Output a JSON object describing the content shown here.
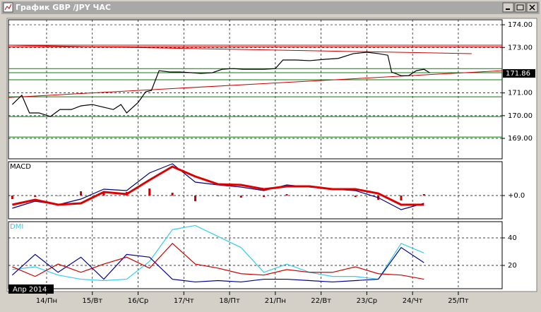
{
  "window": {
    "title": "График GBP /JPY ЧАС",
    "period_label": "Апр 2014"
  },
  "chart_data": [
    {
      "type": "line",
      "xlim": [
        -20,
        239
      ],
      "ylim": [
        168.1,
        174.22
      ],
      "yticks": [
        {
          "value": 169,
          "label": "169.00"
        },
        {
          "value": 170,
          "label": "170.00"
        },
        {
          "value": 171,
          "label": "171.00"
        },
        {
          "value": 173,
          "label": "173.00"
        },
        {
          "value": 174,
          "label": "174.00"
        }
      ],
      "last_price": {
        "value": 171.86,
        "label": "171.86"
      },
      "x": [
        -18,
        -13,
        -9,
        -4,
        2,
        7,
        13,
        18,
        24,
        30,
        35,
        39,
        42,
        48,
        52,
        55,
        59,
        65,
        70,
        76,
        81,
        87,
        92,
        98,
        103,
        109,
        114,
        120,
        124,
        131,
        138,
        146,
        153,
        161,
        168,
        174,
        179,
        181,
        186,
        190,
        194,
        198,
        201
      ],
      "series": [
        {
          "color": "#000000",
          "values": [
            170.49,
            170.9,
            170.12,
            170.12,
            169.96,
            170.27,
            170.27,
            170.43,
            170.49,
            170.37,
            170.27,
            170.49,
            170.12,
            170.58,
            171.05,
            171.11,
            171.98,
            171.92,
            171.92,
            171.89,
            171.86,
            171.89,
            172.04,
            172.07,
            172.04,
            172.04,
            172.04,
            172.07,
            172.45,
            172.45,
            172.42,
            172.48,
            172.52,
            172.73,
            172.79,
            172.73,
            172.66,
            171.92,
            171.76,
            171.76,
            171.98,
            172.04,
            171.89
          ]
        }
      ],
      "levels": [
        {
          "value": 172.07,
          "color": "#008000"
        },
        {
          "value": 171.89,
          "color": "#008000"
        },
        {
          "value": 171.58,
          "color": "#008000"
        },
        {
          "value": 170.83,
          "color": "#008000"
        },
        {
          "value": 169.96,
          "color": "#008000"
        },
        {
          "value": 169.06,
          "color": "#008000"
        },
        {
          "value": 173.1,
          "color": "#cc0000"
        },
        {
          "value": 173.03,
          "color": "#cc0000"
        }
      ],
      "trendlines": [
        {
          "x": [
            -20,
            239
          ],
          "y": [
            170.8,
            171.98
          ],
          "color": "#cc0000"
        },
        {
          "x": [
            -20,
            223
          ],
          "y": [
            173.1,
            172.73
          ],
          "color": "#cc0000"
        }
      ]
    },
    {
      "type": "macd",
      "title": "MACD",
      "xlim": [
        -20,
        239
      ],
      "ylim": [
        -0.33,
        0.48
      ],
      "yticks": [
        {
          "value": 0,
          "label": "+0.0"
        }
      ],
      "x": [
        -18,
        -6,
        6,
        18,
        30,
        42,
        54,
        66,
        78,
        90,
        102,
        114,
        126,
        138,
        150,
        162,
        174,
        186,
        198
      ],
      "series": [
        {
          "type": "bar",
          "color": "#cc0000",
          "values": [
            -0.05,
            -0.02,
            0,
            0.06,
            0.04,
            0.05,
            0.1,
            0.04,
            -0.08,
            -0.01,
            -0.03,
            -0.02,
            0.02,
            -0.01,
            0,
            -0.02,
            -0.06,
            -0.07,
            0.02
          ]
        },
        {
          "type": "line",
          "color": "#000080",
          "values": [
            -0.18,
            -0.08,
            -0.13,
            -0.05,
            0.09,
            0.07,
            0.32,
            0.45,
            0.19,
            0.15,
            0.12,
            0.07,
            0.15,
            0.12,
            0.09,
            0.07,
            -0.03,
            -0.2,
            -0.11
          ]
        },
        {
          "type": "line",
          "color": "#dd0000",
          "width": 3,
          "values": [
            -0.13,
            -0.06,
            -0.13,
            -0.11,
            0.05,
            0.02,
            0.22,
            0.41,
            0.27,
            0.16,
            0.15,
            0.09,
            0.13,
            0.13,
            0.09,
            0.09,
            0.03,
            -0.13,
            -0.13
          ]
        }
      ]
    },
    {
      "type": "line",
      "title": "DMI",
      "xlim": [
        -20,
        239
      ],
      "ylim": [
        3.1,
        51.8
      ],
      "yticks": [
        20,
        40
      ],
      "xticks": [
        {
          "value": 0,
          "label": "14/Пн"
        },
        {
          "value": 24,
          "label": "15/Вт"
        },
        {
          "value": 48,
          "label": "16/Ср"
        },
        {
          "value": 72,
          "label": "17/Чт"
        },
        {
          "value": 96,
          "label": "18/Пт"
        },
        {
          "value": 120,
          "label": "21/Пн"
        },
        {
          "value": 144,
          "label": "22/Вт"
        },
        {
          "value": 168,
          "label": "23/Ср"
        },
        {
          "value": 192,
          "label": "24/Чт"
        },
        {
          "value": 216,
          "label": "25/Пт"
        }
      ],
      "x": [
        -18,
        -6,
        6,
        18,
        30,
        42,
        54,
        66,
        78,
        90,
        102,
        114,
        126,
        138,
        150,
        162,
        174,
        186,
        198
      ],
      "series": [
        {
          "color": "#33ccee",
          "values": [
            17,
            19,
            13,
            10,
            9,
            10,
            23,
            46,
            49,
            41,
            33,
            15,
            21,
            15,
            12,
            12,
            10,
            36,
            29
          ]
        },
        {
          "color": "#000099",
          "values": [
            13,
            28,
            15,
            26,
            10,
            28,
            26,
            10,
            8,
            9,
            8,
            10,
            10,
            9,
            8,
            9,
            10,
            33,
            22
          ]
        },
        {
          "color": "#cc0000",
          "values": [
            19,
            12,
            21,
            15,
            21,
            26,
            18,
            36,
            21,
            18,
            14,
            13,
            17,
            15,
            15,
            19,
            14,
            13,
            10
          ]
        }
      ]
    }
  ]
}
